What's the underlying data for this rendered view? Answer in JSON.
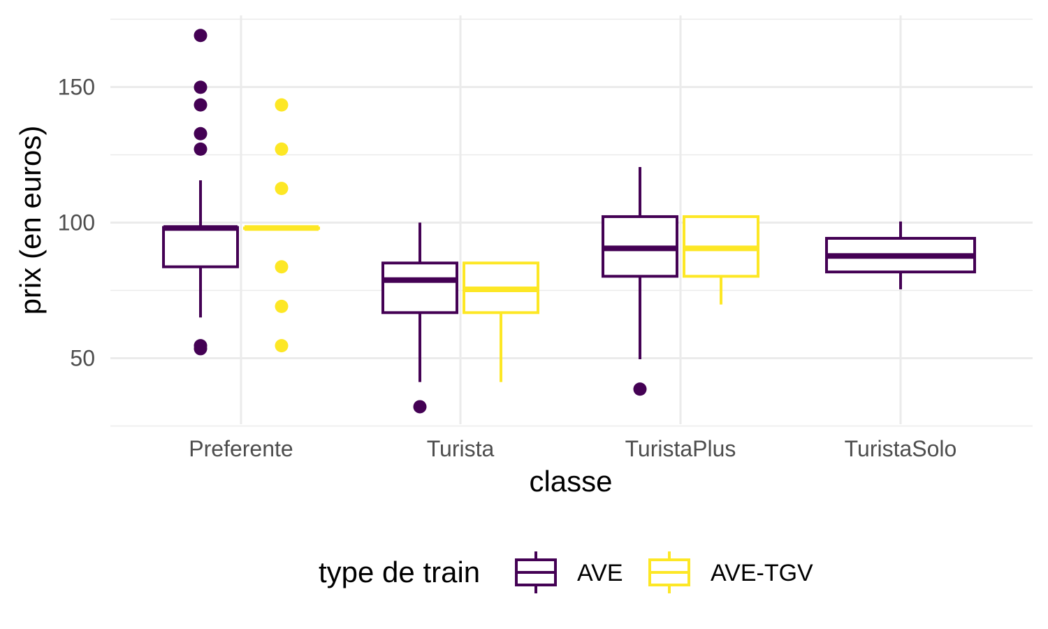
{
  "chart_data": {
    "type": "boxplot",
    "xlabel": "classe",
    "ylabel": "prix (en euros)",
    "ylim": [
      25,
      176
    ],
    "yticks": [
      50,
      100,
      150
    ],
    "ytick_labels": [
      "50",
      "100",
      "150"
    ],
    "categories": [
      "Preferente",
      "Turista",
      "TuristaPlus",
      "TuristaSolo"
    ],
    "grid": true,
    "legend": {
      "title": "type de train",
      "position": "bottom",
      "entries": [
        "AVE",
        "AVE-TGV"
      ]
    },
    "colors": {
      "AVE": "#440154",
      "AVE-TGV": "#FDE725"
    },
    "series": [
      {
        "name": "AVE",
        "boxes": [
          {
            "category": "Preferente",
            "whisker_low": 65,
            "q1": 83.7,
            "median": 98.0,
            "q3": 98.2,
            "whisker_high": 115.6,
            "outliers": [
              53.5,
              54.6,
              127.1,
              132.8,
              143.4,
              149.9,
              169.0
            ]
          },
          {
            "category": "Turista",
            "whisker_low": 41.2,
            "q1": 66.8,
            "median": 78.8,
            "q3": 85.1,
            "whisker_high": 100.0,
            "outliers": [
              32.1
            ]
          },
          {
            "category": "TuristaPlus",
            "whisker_low": 49.6,
            "q1": 80.2,
            "median": 90.5,
            "q3": 102.2,
            "whisker_high": 120.5,
            "outliers": [
              38.6
            ]
          },
          {
            "category": "TuristaSolo",
            "whisker_low": 75.4,
            "q1": 81.8,
            "median": 87.7,
            "q3": 94.2,
            "whisker_high": 100.4,
            "outliers": [],
            "single": true
          }
        ]
      },
      {
        "name": "AVE-TGV",
        "boxes": [
          {
            "category": "Preferente",
            "whisker_low": 98.0,
            "q1": 98.0,
            "median": 98.0,
            "q3": 98.0,
            "whisker_high": 98.0,
            "outliers": [
              54.6,
              69.1,
              83.7,
              112.6,
              127.1,
              143.4
            ]
          },
          {
            "category": "Turista",
            "whisker_low": 41.2,
            "q1": 66.8,
            "median": 75.4,
            "q3": 85.1,
            "whisker_high": 85.1,
            "outliers": []
          },
          {
            "category": "TuristaPlus",
            "whisker_low": 80.2,
            "q1": 80.2,
            "median": 90.5,
            "q3": 102.2,
            "whisker_high": 102.2,
            "outliers": [],
            "lower_whisker_to": 69.8
          }
        ]
      }
    ]
  }
}
